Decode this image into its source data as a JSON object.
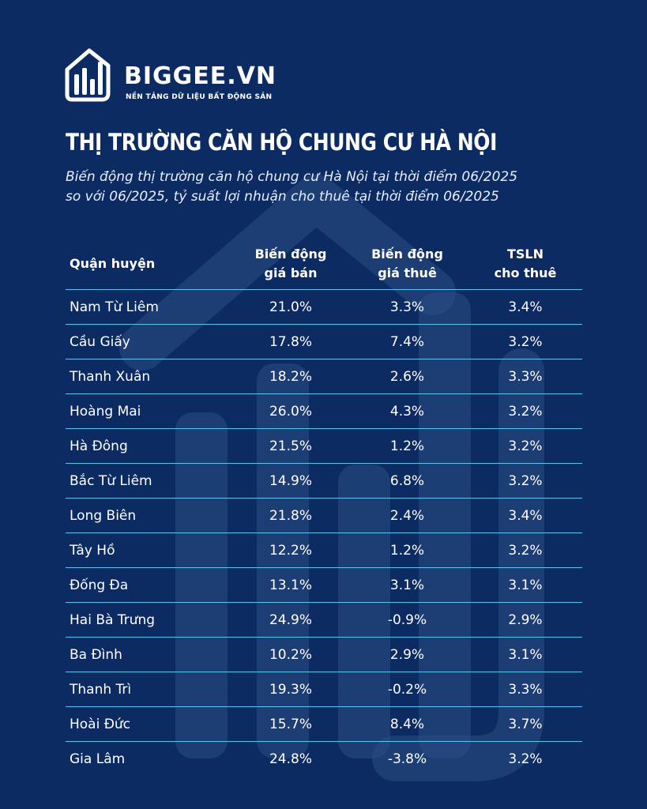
{
  "brand": {
    "name": "BIGGEE.VN",
    "tagline": "NỀN TẢNG DỮ LIỆU BẤT ĐỘNG SẢN"
  },
  "title": "THỊ TRƯỜNG CĂN HỘ CHUNG CƯ HÀ NỘI",
  "subtitle": {
    "line1": "Biến động thị trường căn hộ chung cư Hà Nội tại thời điểm 06/2025",
    "line2": "so với 06/2025, tỷ suất lợi nhuận cho thuê tại thời điểm 06/2025"
  },
  "colors": {
    "background": "#0c2b63",
    "divider": "#55c8f2",
    "text": "#ffffff"
  },
  "table": {
    "headers": {
      "district": "Quận huyện",
      "sale_line1": "Biến động",
      "sale_line2": "giá bán",
      "rent_line1": "Biến động",
      "rent_line2": "giá thuê",
      "yield_line1": "TSLN",
      "yield_line2": "cho thuê"
    },
    "rows": [
      {
        "district": "Nam Từ Liêm",
        "sale": "21.0%",
        "rent": "3.3%",
        "yield": "3.4%"
      },
      {
        "district": "Cầu Giấy",
        "sale": "17.8%",
        "rent": "7.4%",
        "yield": "3.2%"
      },
      {
        "district": "Thanh Xuân",
        "sale": "18.2%",
        "rent": "2.6%",
        "yield": "3.3%"
      },
      {
        "district": "Hoàng Mai",
        "sale": "26.0%",
        "rent": "4.3%",
        "yield": "3.2%"
      },
      {
        "district": "Hà Đông",
        "sale": "21.5%",
        "rent": "1.2%",
        "yield": "3.2%"
      },
      {
        "district": "Bắc Từ Liêm",
        "sale": "14.9%",
        "rent": "6.8%",
        "yield": "3.2%"
      },
      {
        "district": "Long Biên",
        "sale": "21.8%",
        "rent": "2.4%",
        "yield": "3.4%"
      },
      {
        "district": "Tây Hồ",
        "sale": "12.2%",
        "rent": "1.2%",
        "yield": "3.2%"
      },
      {
        "district": "Đống Đa",
        "sale": "13.1%",
        "rent": "3.1%",
        "yield": "3.1%"
      },
      {
        "district": "Hai Bà Trưng",
        "sale": "24.9%",
        "rent": "-0.9%",
        "yield": "2.9%"
      },
      {
        "district": "Ba Đình",
        "sale": "10.2%",
        "rent": "2.9%",
        "yield": "3.1%"
      },
      {
        "district": "Thanh Trì",
        "sale": "19.3%",
        "rent": "-0.2%",
        "yield": "3.3%"
      },
      {
        "district": "Hoài Đức",
        "sale": "15.7%",
        "rent": "8.4%",
        "yield": "3.7%"
      },
      {
        "district": "Gia Lâm",
        "sale": "24.8%",
        "rent": "-3.8%",
        "yield": "3.2%"
      }
    ]
  }
}
